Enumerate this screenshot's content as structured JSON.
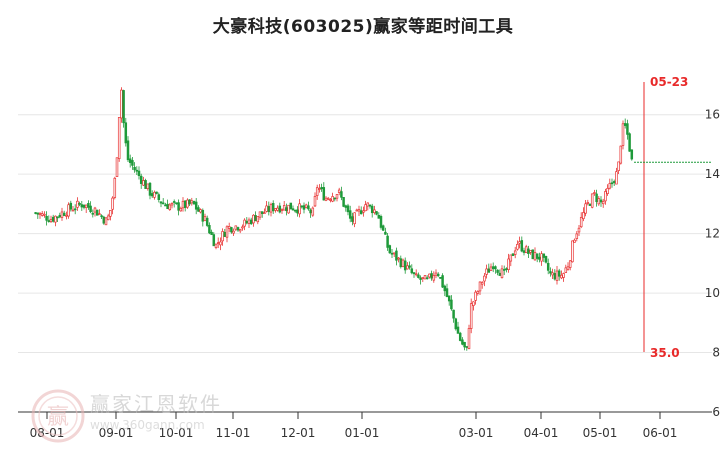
{
  "title": "大豪科技(603025)赢家等距时间工具",
  "watermark": {
    "name": "赢家江恩软件",
    "url": "www.360gann.com",
    "seal_char": "赢"
  },
  "colors": {
    "up": "#e83030",
    "down": "#1f9a3a",
    "marker": "#e82a2a",
    "grid": "#e6e6e6",
    "axis": "#333333"
  },
  "chart_data": {
    "type": "candlestick",
    "title": "大豪科技(603025)赢家等距时间工具",
    "x_ticks": [
      "08-01",
      "09-01",
      "10-01",
      "11-01",
      "12-01",
      "01-01",
      "03-01",
      "04-01",
      "05-01",
      "06-01"
    ],
    "y_ticks": [
      6,
      8,
      10,
      12,
      14,
      16
    ],
    "ylim": [
      6,
      17
    ],
    "grid": true,
    "marker": {
      "date": "05-23",
      "label_top": "05-23",
      "label_bottom": "35.0"
    },
    "last_price_line": 14.4,
    "price_path": [
      [
        "07-25",
        12.7
      ],
      [
        "08-03",
        12.5
      ],
      [
        "08-10",
        12.8
      ],
      [
        "08-16",
        13.0
      ],
      [
        "08-22",
        12.8
      ],
      [
        "08-27",
        12.4
      ],
      [
        "08-29",
        12.9
      ],
      [
        "08-31",
        14.1
      ],
      [
        "09-03",
        16.5
      ],
      [
        "09-04",
        17.0
      ],
      [
        "09-05",
        15.4
      ],
      [
        "09-07",
        14.5
      ],
      [
        "09-12",
        14.0
      ],
      [
        "09-18",
        13.4
      ],
      [
        "09-25",
        13.0
      ],
      [
        "10-01",
        12.9
      ],
      [
        "10-10",
        13.0
      ],
      [
        "10-16",
        12.5
      ],
      [
        "10-22",
        11.6
      ],
      [
        "10-28",
        12.2
      ],
      [
        "11-06",
        12.3
      ],
      [
        "11-12",
        12.6
      ],
      [
        "11-20",
        12.9
      ],
      [
        "11-28",
        12.9
      ],
      [
        "12-05",
        12.8
      ],
      [
        "12-08",
        12.7
      ],
      [
        "12-10",
        13.6
      ],
      [
        "12-14",
        13.2
      ],
      [
        "12-20",
        13.4
      ],
      [
        "12-26",
        12.4
      ],
      [
        "01-03",
        13.0
      ],
      [
        "01-09",
        12.7
      ],
      [
        "01-15",
        11.4
      ],
      [
        "01-22",
        11.0
      ],
      [
        "01-29",
        10.5
      ],
      [
        "02-05",
        10.4
      ],
      [
        "02-10",
        10.8
      ],
      [
        "02-16",
        9.8
      ],
      [
        "02-22",
        8.5
      ],
      [
        "02-26",
        8.0
      ],
      [
        "02-28",
        9.5
      ],
      [
        "03-05",
        10.6
      ],
      [
        "03-09",
        11.0
      ],
      [
        "03-14",
        10.6
      ],
      [
        "03-20",
        11.7
      ],
      [
        "03-26",
        11.3
      ],
      [
        "04-01",
        11.2
      ],
      [
        "04-06",
        10.6
      ],
      [
        "04-12",
        10.6
      ],
      [
        "04-15",
        11.0
      ],
      [
        "04-18",
        11.9
      ],
      [
        "04-24",
        12.9
      ],
      [
        "04-28",
        13.3
      ],
      [
        "05-02",
        13.0
      ],
      [
        "05-06",
        13.6
      ],
      [
        "05-10",
        14.1
      ],
      [
        "05-12",
        15.5
      ],
      [
        "05-14",
        15.6
      ],
      [
        "05-16",
        14.8
      ],
      [
        "05-17",
        14.4
      ]
    ]
  }
}
